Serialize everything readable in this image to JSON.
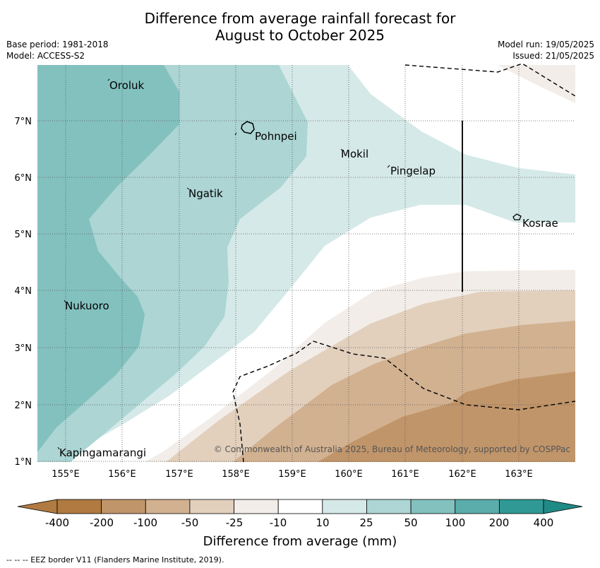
{
  "title_line1": "Difference from average rainfall forecast for",
  "title_line2": "August to October 2025",
  "meta_left": [
    "Base period: 1981-2018",
    "Model: ACCESS-S2"
  ],
  "meta_right": [
    "Model run: 19/05/2025",
    "Issued: 21/05/2025"
  ],
  "map": {
    "lon_ticks": [
      "155°E",
      "156°E",
      "157°E",
      "158°E",
      "159°E",
      "160°E",
      "161°E",
      "162°E",
      "163°E"
    ],
    "lat_ticks": [
      "1°N",
      "2°N",
      "3°N",
      "4°N",
      "5°N",
      "6°N",
      "7°N"
    ],
    "places": [
      "Oroluk",
      "Pohnpei",
      "Mokil",
      "Pingelap",
      "Ngatik",
      "Kosrae",
      "Nukuoro",
      "Kapingamarangi"
    ],
    "copyright": "© Commonwealth of Australia 2025, Bureau of Meteorology, supported by COSPPac"
  },
  "colorbar": {
    "labels": [
      "-400",
      "-200",
      "-100",
      "-50",
      "-25",
      "-10",
      "10",
      "25",
      "50",
      "100",
      "200",
      "400"
    ],
    "colors": [
      "#b07a40",
      "#c1956a",
      "#d2b190",
      "#e2d0bd",
      "#f2ede8",
      "#ffffff",
      "#d5e9e8",
      "#acd5d4",
      "#83c1bf",
      "#5aadaa",
      "#319995"
    ],
    "title": "Difference from average (mm)"
  },
  "footer": "--  --  -- EEZ border V11 (Flanders Marine Institute, 2019)."
}
